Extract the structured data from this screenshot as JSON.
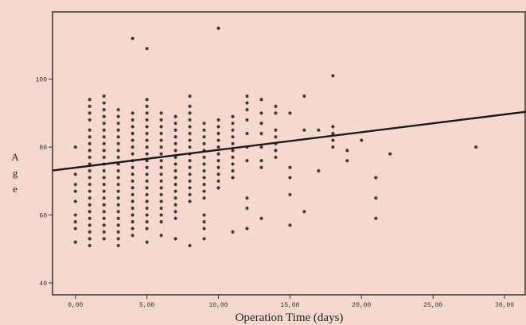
{
  "chart_data": {
    "type": "scatter",
    "title": "",
    "xlabel": "Operation Time (days)",
    "ylabel": "Age",
    "xlim": [
      -1.6,
      31.5
    ],
    "ylim": [
      36.5,
      119.8
    ],
    "x_ticks": [
      0,
      5,
      10,
      15,
      20,
      25,
      30
    ],
    "x_tick_labels": [
      "0,00",
      "5,00",
      "10,00",
      "15,00",
      "20,00",
      "25,00",
      "30,00"
    ],
    "y_ticks": [
      40,
      60,
      80,
      100
    ],
    "y_tick_labels": [
      "40",
      "60",
      "80",
      "100"
    ],
    "grid": false,
    "legend": "none",
    "colors": {
      "background": "#f5d9cf",
      "points": "#333333",
      "line": "#1a1a1a",
      "frame": "#333333"
    },
    "columns": [
      {
        "x": 0,
        "ys": [
          80,
          72,
          69,
          67,
          64,
          60,
          58,
          56,
          52
        ]
      },
      {
        "x": 1,
        "ys": [
          94,
          92,
          90,
          88,
          85,
          83,
          81,
          79,
          77,
          75,
          73,
          71,
          69,
          67,
          65,
          63,
          61,
          59,
          57,
          55,
          53,
          51
        ]
      },
      {
        "x": 2,
        "ys": [
          95,
          93,
          91,
          89,
          87,
          85,
          83,
          81,
          79,
          77,
          75,
          73,
          71,
          69,
          67,
          65,
          63,
          61,
          59,
          57,
          55,
          53
        ]
      },
      {
        "x": 3,
        "ys": [
          91,
          89,
          87,
          85,
          83,
          81,
          79,
          77,
          75,
          73,
          71,
          69,
          67,
          65,
          63,
          61,
          59,
          57,
          55,
          53,
          51
        ]
      },
      {
        "x": 4,
        "ys": [
          112,
          90,
          88,
          86,
          84,
          82,
          80,
          78,
          76,
          74,
          72,
          70,
          68,
          66,
          64,
          62,
          60,
          58,
          56,
          54
        ]
      },
      {
        "x": 5,
        "ys": [
          109,
          94,
          92,
          90,
          88,
          86,
          84,
          82,
          80,
          78,
          76,
          74,
          72,
          70,
          68,
          66,
          64,
          62,
          60,
          58,
          56,
          52
        ]
      },
      {
        "x": 6,
        "ys": [
          90,
          88,
          86,
          84,
          82,
          80,
          78,
          76,
          74,
          72,
          70,
          68,
          66,
          64,
          62,
          60,
          58,
          54
        ]
      },
      {
        "x": 7,
        "ys": [
          89,
          87,
          85,
          83,
          81,
          79,
          77,
          75,
          73,
          71,
          69,
          67,
          65,
          63,
          61,
          59,
          53
        ]
      },
      {
        "x": 8,
        "ys": [
          95,
          92,
          90,
          88,
          86,
          84,
          82,
          80,
          78,
          76,
          74,
          72,
          70,
          68,
          66,
          64,
          51
        ]
      },
      {
        "x": 9,
        "ys": [
          87,
          85,
          83,
          81,
          79,
          77,
          75,
          73,
          71,
          69,
          67,
          65,
          60,
          58,
          56,
          53
        ]
      },
      {
        "x": 10,
        "ys": [
          115,
          88,
          86,
          84,
          82,
          80,
          78,
          76,
          74,
          72,
          70,
          68
        ]
      },
      {
        "x": 11,
        "ys": [
          89,
          87,
          85,
          83,
          81,
          79,
          77,
          75,
          73,
          71,
          55
        ]
      },
      {
        "x": 12,
        "ys": [
          95,
          93,
          91,
          88,
          84,
          80,
          76,
          65,
          62,
          56
        ]
      },
      {
        "x": 13,
        "ys": [
          94,
          90,
          87,
          84,
          80,
          76,
          74,
          59
        ]
      },
      {
        "x": 14,
        "ys": [
          92,
          90,
          85,
          83,
          81,
          79,
          77
        ]
      },
      {
        "x": 15,
        "ys": [
          90,
          74,
          71,
          66,
          57
        ]
      },
      {
        "x": 16,
        "ys": [
          95,
          85,
          61
        ]
      },
      {
        "x": 17,
        "ys": [
          85,
          73
        ]
      },
      {
        "x": 18,
        "ys": [
          101,
          86,
          84,
          82,
          80
        ]
      },
      {
        "x": 19,
        "ys": [
          79,
          76
        ]
      },
      {
        "x": 20,
        "ys": [
          82
        ]
      },
      {
        "x": 21,
        "ys": [
          71,
          65,
          59
        ]
      },
      {
        "x": 22,
        "ys": [
          78
        ]
      },
      {
        "x": 28,
        "ys": [
          80
        ]
      }
    ],
    "regression_line": {
      "x": [
        -1.6,
        31.5
      ],
      "y": [
        73.1,
        90.4
      ]
    }
  }
}
